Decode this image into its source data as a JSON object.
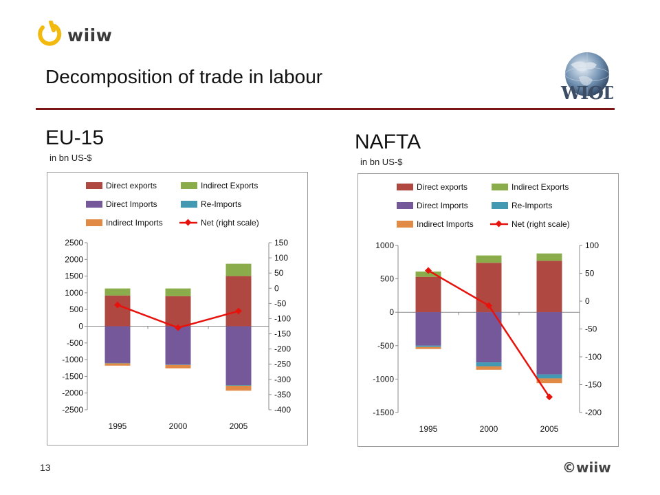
{
  "header": {
    "logo_text": "wiiw",
    "title": "Decomposition of trade in labour",
    "wiod_logo_text": "WIOD"
  },
  "footer": {
    "page_number": "13",
    "brand": "©wiiw"
  },
  "colors": {
    "direct_exports": "#b04842",
    "indirect_exports": "#8bac4a",
    "direct_imports": "#75589a",
    "re_imports": "#4399b1",
    "indirect_imports": "#e08a46",
    "net": "#e8120c",
    "rule": "#7b1616"
  },
  "chart_data": [
    {
      "region_label": "EU-15",
      "unit_label": "in bn US-$",
      "type": "bar",
      "stacked": true,
      "categories": [
        "1995",
        "2000",
        "2005"
      ],
      "legend_labels": [
        "Direct exports",
        "Indirect Exports",
        "Direct Imports",
        "Re-Imports",
        "Indirect Imports",
        "Net (right scale)"
      ],
      "legend_placement": "top",
      "series": [
        {
          "name": "Direct exports",
          "axis": "left",
          "values": [
            920,
            900,
            1500
          ]
        },
        {
          "name": "Indirect Exports",
          "axis": "left",
          "values": [
            210,
            230,
            370
          ]
        },
        {
          "name": "Direct Imports",
          "axis": "left",
          "values": [
            -1100,
            -1150,
            -1760
          ]
        },
        {
          "name": "Re-Imports",
          "axis": "left",
          "values": [
            -10,
            -10,
            -20
          ]
        },
        {
          "name": "Indirect Imports",
          "axis": "left",
          "values": [
            -70,
            -100,
            -150
          ]
        },
        {
          "name": "Net (right scale)",
          "axis": "right",
          "type": "line",
          "values": [
            -55,
            -130,
            -75
          ]
        }
      ],
      "yleft": {
        "min": -2500,
        "max": 2500,
        "step": 500,
        "ticks": [
          "2500",
          "2000",
          "1500",
          "1000",
          "500",
          "0",
          "-500",
          "-1000",
          "-1500",
          "-2000",
          "-2500"
        ]
      },
      "yright": {
        "min": -400,
        "max": 150,
        "step": 50,
        "ticks": [
          "150",
          "100",
          "50",
          "0",
          "-50",
          "-100",
          "-150",
          "-200",
          "-250",
          "-300",
          "-350",
          "-400"
        ]
      },
      "grid": false
    },
    {
      "region_label": "NAFTA",
      "unit_label": "in bn US-$",
      "type": "bar",
      "stacked": true,
      "categories": [
        "1995",
        "2000",
        "2005"
      ],
      "legend_labels": [
        "Direct exports",
        "Indirect Exports",
        "Direct Imports",
        "Re-Imports",
        "Indirect Imports",
        "Net (right scale)"
      ],
      "legend_placement": "top",
      "series": [
        {
          "name": "Direct exports",
          "axis": "left",
          "values": [
            530,
            740,
            770
          ]
        },
        {
          "name": "Indirect Exports",
          "axis": "left",
          "values": [
            80,
            110,
            110
          ]
        },
        {
          "name": "Direct Imports",
          "axis": "left",
          "values": [
            -500,
            -750,
            -930
          ]
        },
        {
          "name": "Re-Imports",
          "axis": "left",
          "values": [
            -20,
            -60,
            -60
          ]
        },
        {
          "name": "Indirect Imports",
          "axis": "left",
          "values": [
            -30,
            -50,
            -70
          ]
        },
        {
          "name": "Net (right scale)",
          "axis": "right",
          "type": "line",
          "values": [
            55,
            -8,
            -172
          ]
        }
      ],
      "yleft": {
        "min": -1500,
        "max": 1000,
        "step": 500,
        "ticks": [
          "1000",
          "500",
          "0",
          "-500",
          "-1000",
          "-1500"
        ]
      },
      "yright": {
        "min": -200,
        "max": 100,
        "step": 50,
        "ticks": [
          "100",
          "50",
          "0",
          "-50",
          "-100",
          "-150",
          "-200"
        ]
      },
      "grid": false
    }
  ]
}
